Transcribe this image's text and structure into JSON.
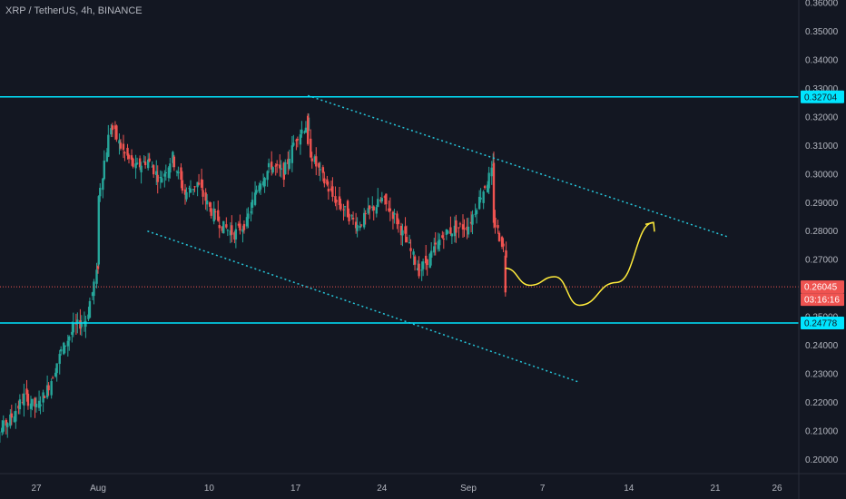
{
  "header": {
    "symbol": "XRP / TetherUS, 4h, BINANCE"
  },
  "colors": {
    "background": "#131722",
    "up": "#26a69a",
    "down": "#ef5350",
    "level_line": "#00e5ff",
    "channel": "#26c6da",
    "projection": "#ffeb3b",
    "last_price": "#ef5350"
  },
  "chart_data": {
    "type": "candlestick",
    "title": "XRP / TetherUS, 4h, BINANCE",
    "ylim": [
      0.195,
      0.361
    ],
    "y_ticks": [
      "0.20000",
      "0.21000",
      "0.22000",
      "0.23000",
      "0.24000",
      "0.25000",
      "0.26000",
      "0.27000",
      "0.28000",
      "0.29000",
      "0.30000",
      "0.31000",
      "0.32000",
      "0.33000",
      "0.34000",
      "0.35000",
      "0.36000"
    ],
    "x_ticks": [
      "27",
      "Aug",
      "10",
      "17",
      "24",
      "Sep",
      "7",
      "14",
      "21",
      "26"
    ],
    "grid": false,
    "price_path": [
      [
        "Jul 23",
        0.205
      ],
      [
        "Jul 25",
        0.215
      ],
      [
        "Jul 26",
        0.222
      ],
      [
        "Jul 27",
        0.218
      ],
      [
        "Jul 28",
        0.226
      ],
      [
        "Jul 29",
        0.238
      ],
      [
        "Jul 30",
        0.246
      ],
      [
        "Jul 31",
        0.249
      ],
      [
        "Aug 1",
        0.268
      ],
      [
        "Aug 1",
        0.292
      ],
      [
        "Aug 2",
        0.317
      ],
      [
        "Aug 3",
        0.308
      ],
      [
        "Aug 4",
        0.302
      ],
      [
        "Aug 5",
        0.305
      ],
      [
        "Aug 6",
        0.298
      ],
      [
        "Aug 7",
        0.306
      ],
      [
        "Aug 8",
        0.293
      ],
      [
        "Aug 9",
        0.297
      ],
      [
        "Aug 10",
        0.288
      ],
      [
        "Aug 11",
        0.282
      ],
      [
        "Aug 12",
        0.279
      ],
      [
        "Aug 13",
        0.283
      ],
      [
        "Aug 14",
        0.297
      ],
      [
        "Aug 15",
        0.303
      ],
      [
        "Aug 16",
        0.3
      ],
      [
        "Aug 17",
        0.313
      ],
      [
        "Aug 18",
        0.318
      ],
      [
        "Aug 18",
        0.309
      ],
      [
        "Aug 19",
        0.3
      ],
      [
        "Aug 20",
        0.292
      ],
      [
        "Aug 21",
        0.287
      ],
      [
        "Aug 22",
        0.282
      ],
      [
        "Aug 23",
        0.287
      ],
      [
        "Aug 24",
        0.291
      ],
      [
        "Aug 25",
        0.285
      ],
      [
        "Aug 26",
        0.276
      ],
      [
        "Aug 27",
        0.266
      ],
      [
        "Aug 28",
        0.272
      ],
      [
        "Aug 29",
        0.279
      ],
      [
        "Aug 30",
        0.281
      ],
      [
        "Aug 31",
        0.282
      ],
      [
        "Sep 1",
        0.293
      ],
      [
        "Sep 2",
        0.302
      ],
      [
        "Sep 2",
        0.284
      ],
      [
        "Sep 3",
        0.272
      ],
      [
        "Sep 3",
        0.2605
      ]
    ],
    "horizontal_levels": [
      {
        "value": 0.32704,
        "label": "0.32704"
      },
      {
        "value": 0.24778,
        "label": "0.24778"
      }
    ],
    "last_price": {
      "value": 0.26045,
      "label": "0.26045",
      "countdown": "03:16:16"
    },
    "channel_lines": [
      {
        "from": [
          "Aug 18",
          0.3275
        ],
        "to": [
          "Sep 21",
          0.278
        ]
      },
      {
        "from": [
          "Aug 5",
          0.28
        ],
        "to": [
          "Sep 9",
          0.227
        ]
      }
    ],
    "projection": [
      [
        "Sep 3",
        0.267
      ],
      [
        "Sep 5",
        0.261
      ],
      [
        "Sep 7",
        0.264
      ],
      [
        "Sep 9",
        0.254
      ],
      [
        "Sep 12",
        0.262
      ],
      [
        "Sep 15",
        0.283
      ]
    ]
  }
}
